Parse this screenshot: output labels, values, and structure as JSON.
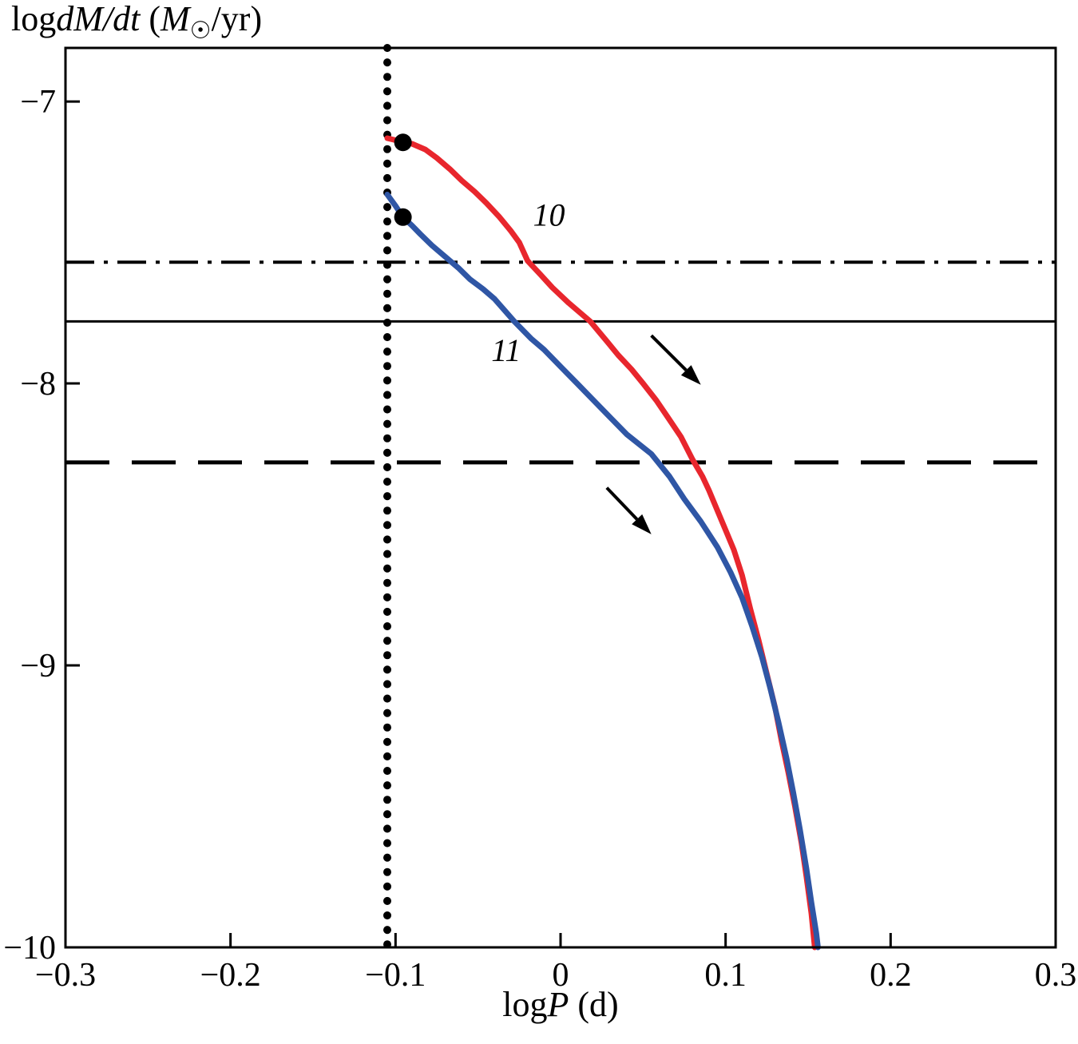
{
  "chart_data": {
    "type": "line",
    "y_axis_title_parts": [
      {
        "t": "log",
        "style": "roman"
      },
      {
        "t": "dM/dt",
        "style": "italic"
      },
      {
        "t": " (",
        "style": "roman"
      },
      {
        "t": "M",
        "style": "italic"
      },
      {
        "t": "☉",
        "style": "sub"
      },
      {
        "t": "/yr)",
        "style": "roman"
      }
    ],
    "x_axis_title_parts": [
      {
        "t": "log",
        "style": "roman"
      },
      {
        "t": "P",
        "style": "italic"
      },
      {
        "t": " (d)",
        "style": "roman"
      }
    ],
    "xlim": [
      -0.3,
      0.3
    ],
    "ylim": [
      -10,
      -6.81
    ],
    "grid": false,
    "x_ticks": [
      {
        "v": -0.3,
        "label": "−0.3"
      },
      {
        "v": -0.2,
        "label": "−0.2"
      },
      {
        "v": -0.1,
        "label": "−0.1"
      },
      {
        "v": 0.0,
        "label": "0"
      },
      {
        "v": 0.1,
        "label": "0.1"
      },
      {
        "v": 0.2,
        "label": "0.2"
      },
      {
        "v": 0.3,
        "label": "0.3"
      }
    ],
    "y_ticks": [
      {
        "v": -7,
        "label": "−7"
      },
      {
        "v": -8,
        "label": "−8"
      },
      {
        "v": -9,
        "label": "−9"
      },
      {
        "v": -10,
        "label": "−10"
      }
    ],
    "vline": {
      "x": -0.105,
      "style": "dotted",
      "color": "#000000"
    },
    "hlines": [
      {
        "y": -7.57,
        "style": "dashdot",
        "color": "#000000"
      },
      {
        "y": -7.78,
        "style": "solid",
        "color": "#000000"
      },
      {
        "y": -8.28,
        "style": "dashed",
        "color": "#000000"
      }
    ],
    "series": [
      {
        "name": "10",
        "color": "#e8262d",
        "label_pos": [
          -0.007,
          -7.44
        ],
        "points": [
          [
            -0.105,
            -7.13
          ],
          [
            -0.098,
            -7.14
          ],
          [
            -0.09,
            -7.15
          ],
          [
            -0.082,
            -7.17
          ],
          [
            -0.075,
            -7.2
          ],
          [
            -0.067,
            -7.24
          ],
          [
            -0.06,
            -7.28
          ],
          [
            -0.052,
            -7.32
          ],
          [
            -0.045,
            -7.36
          ],
          [
            -0.037,
            -7.41
          ],
          [
            -0.03,
            -7.46
          ],
          [
            -0.025,
            -7.5
          ],
          [
            -0.02,
            -7.565
          ],
          [
            -0.012,
            -7.615
          ],
          [
            -0.005,
            -7.66
          ],
          [
            0.005,
            -7.715
          ],
          [
            0.018,
            -7.78
          ],
          [
            0.028,
            -7.85
          ],
          [
            0.035,
            -7.9
          ],
          [
            0.043,
            -7.95
          ],
          [
            0.05,
            -8.0
          ],
          [
            0.058,
            -8.06
          ],
          [
            0.065,
            -8.12
          ],
          [
            0.073,
            -8.19
          ],
          [
            0.08,
            -8.27
          ],
          [
            0.086,
            -8.33
          ],
          [
            0.09,
            -8.38
          ],
          [
            0.095,
            -8.45
          ],
          [
            0.1,
            -8.52
          ],
          [
            0.105,
            -8.59
          ],
          [
            0.11,
            -8.68
          ],
          [
            0.115,
            -8.8
          ],
          [
            0.12,
            -8.91
          ],
          [
            0.125,
            -9.03
          ],
          [
            0.13,
            -9.15
          ],
          [
            0.134,
            -9.27
          ],
          [
            0.138,
            -9.38
          ],
          [
            0.142,
            -9.5
          ],
          [
            0.146,
            -9.63
          ],
          [
            0.149,
            -9.75
          ],
          [
            0.152,
            -9.88
          ],
          [
            0.154,
            -10.0
          ]
        ]
      },
      {
        "name": "11",
        "color": "#2f56a5",
        "label_pos": [
          -0.033,
          -7.92
        ],
        "points": [
          [
            -0.105,
            -7.33
          ],
          [
            -0.1,
            -7.37
          ],
          [
            -0.0955,
            -7.41
          ],
          [
            -0.09,
            -7.44
          ],
          [
            -0.085,
            -7.47
          ],
          [
            -0.078,
            -7.51
          ],
          [
            -0.07,
            -7.55
          ],
          [
            -0.062,
            -7.59
          ],
          [
            -0.055,
            -7.63
          ],
          [
            -0.047,
            -7.665
          ],
          [
            -0.04,
            -7.7
          ],
          [
            -0.028,
            -7.78
          ],
          [
            -0.018,
            -7.84
          ],
          [
            -0.01,
            -7.88
          ],
          [
            0.0,
            -7.94
          ],
          [
            0.01,
            -8.0
          ],
          [
            0.02,
            -8.06
          ],
          [
            0.03,
            -8.12
          ],
          [
            0.04,
            -8.18
          ],
          [
            0.055,
            -8.25
          ],
          [
            0.066,
            -8.33
          ],
          [
            0.075,
            -8.41
          ],
          [
            0.085,
            -8.49
          ],
          [
            0.095,
            -8.58
          ],
          [
            0.103,
            -8.67
          ],
          [
            0.11,
            -8.76
          ],
          [
            0.116,
            -8.86
          ],
          [
            0.122,
            -8.97
          ],
          [
            0.127,
            -9.08
          ],
          [
            0.132,
            -9.2
          ],
          [
            0.137,
            -9.33
          ],
          [
            0.141,
            -9.45
          ],
          [
            0.145,
            -9.58
          ],
          [
            0.149,
            -9.72
          ],
          [
            0.152,
            -9.84
          ],
          [
            0.155,
            -9.95
          ],
          [
            0.156,
            -10.0
          ]
        ]
      }
    ],
    "markers": [
      {
        "x": -0.0955,
        "y": -7.145,
        "color": "#000000"
      },
      {
        "x": -0.0955,
        "y": -7.41,
        "color": "#000000"
      }
    ],
    "arrows": [
      {
        "x1": 0.055,
        "y1": -7.83,
        "x2": 0.085,
        "y2": -8.005
      },
      {
        "x1": 0.028,
        "y1": -8.37,
        "x2": 0.055,
        "y2": -8.535
      }
    ]
  }
}
